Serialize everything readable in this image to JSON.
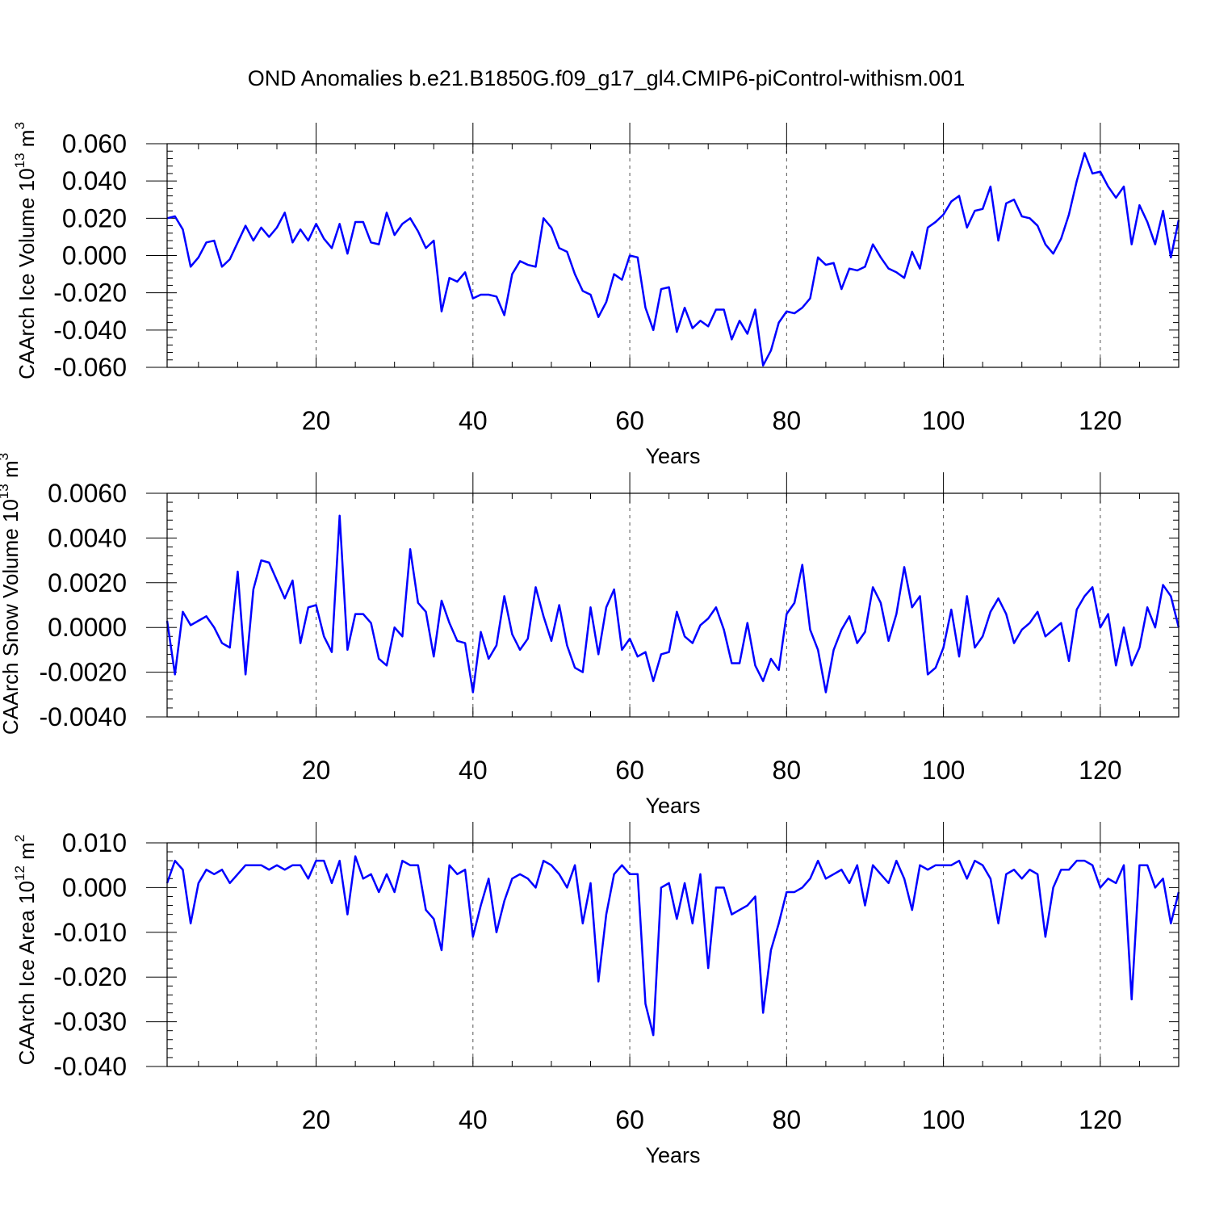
{
  "title": "OND Anomalies b.e21.B1850G.f09_g17_gl4.CMIP6-piControl-withism.001",
  "colors": {
    "series": "#0000ff",
    "frame": "#000000"
  },
  "chart_data": [
    {
      "type": "line",
      "ylabel": "CAArch Ice Volume 10",
      "ylabel_exp": "13",
      "ylabel_unit": " m",
      "ylabel_unit_exp": "3",
      "xlabel": "Years",
      "xlim": [
        1,
        130
      ],
      "ylim": [
        -0.06,
        0.06
      ],
      "yticks": [
        -0.06,
        -0.04,
        -0.02,
        0.0,
        0.02,
        0.04,
        0.06
      ],
      "ytick_labels": [
        "-0.060",
        "-0.040",
        "-0.020",
        "0.000",
        "0.020",
        "0.040",
        "0.060"
      ],
      "xticks": [
        20,
        40,
        60,
        80,
        100,
        120
      ],
      "xtick_labels": [
        "20",
        "40",
        "60",
        "80",
        "100",
        "120"
      ],
      "grid": "dashed vertical at major x ticks",
      "series": [
        {
          "values": [
            0.02,
            0.021,
            0.014,
            -0.006,
            -0.001,
            0.007,
            0.008,
            -0.006,
            -0.002,
            0.007,
            0.016,
            0.008,
            0.015,
            0.01,
            0.015,
            0.023,
            0.007,
            0.014,
            0.008,
            0.017,
            0.009,
            0.004,
            0.017,
            0.001,
            0.018,
            0.018,
            0.007,
            0.006,
            0.023,
            0.011,
            0.017,
            0.02,
            0.013,
            0.004,
            0.008,
            -0.03,
            -0.012,
            -0.014,
            -0.009,
            -0.023,
            -0.021,
            -0.021,
            -0.022,
            -0.032,
            -0.01,
            -0.003,
            -0.005,
            -0.006,
            0.02,
            0.015,
            0.004,
            0.002,
            -0.01,
            -0.019,
            -0.021,
            -0.033,
            -0.025,
            -0.01,
            -0.013,
            0.0,
            -0.001,
            -0.028,
            -0.04,
            -0.018,
            -0.017,
            -0.041,
            -0.028,
            -0.039,
            -0.035,
            -0.038,
            -0.029,
            -0.029,
            -0.045,
            -0.035,
            -0.042,
            -0.029,
            -0.059,
            -0.051,
            -0.036,
            -0.03,
            -0.031,
            -0.028,
            -0.023,
            -0.001,
            -0.005,
            -0.004,
            -0.018,
            -0.007,
            -0.008,
            -0.006,
            0.006,
            -0.001,
            -0.007,
            -0.009,
            -0.012,
            0.002,
            -0.007,
            0.015,
            0.018,
            0.022,
            0.029,
            0.032,
            0.015,
            0.024,
            0.025,
            0.037,
            0.008,
            0.028,
            0.03,
            0.021,
            0.02,
            0.016,
            0.006,
            0.001,
            0.009,
            0.022,
            0.04,
            0.055,
            0.044,
            0.045,
            0.037,
            0.031,
            0.037,
            0.006,
            0.027,
            0.018,
            0.006,
            0.024,
            -0.001,
            0.019
          ]
        }
      ]
    },
    {
      "type": "line",
      "ylabel": "CAArch Snow Volume 10",
      "ylabel_exp": "13",
      "ylabel_unit": " m",
      "ylabel_unit_exp": "3",
      "xlabel": "Years",
      "xlim": [
        1,
        130
      ],
      "ylim": [
        -0.004,
        0.006
      ],
      "yticks": [
        -0.004,
        -0.002,
        0.0,
        0.002,
        0.004,
        0.006
      ],
      "ytick_labels": [
        "-0.0040",
        "-0.0020",
        "0.0000",
        "0.0020",
        "0.0040",
        "0.0060"
      ],
      "xticks": [
        20,
        40,
        60,
        80,
        100,
        120
      ],
      "xtick_labels": [
        "20",
        "40",
        "60",
        "80",
        "100",
        "120"
      ],
      "grid": "dashed vertical at major x ticks",
      "series": [
        {
          "values": [
            0.0003,
            -0.0021,
            0.0007,
            0.0001,
            0.0003,
            0.0005,
            0.0,
            -0.0007,
            -0.0009,
            0.0025,
            -0.0021,
            0.0017,
            0.003,
            0.0029,
            0.0021,
            0.0013,
            0.0021,
            -0.0007,
            0.0009,
            0.001,
            -0.0004,
            -0.0011,
            0.005,
            -0.001,
            0.0006,
            0.0006,
            0.0002,
            -0.0014,
            -0.0017,
            0.0,
            -0.0004,
            0.0035,
            0.0011,
            0.0007,
            -0.0013,
            0.0012,
            0.0002,
            -0.0006,
            -0.0007,
            -0.0029,
            -0.0002,
            -0.0014,
            -0.0008,
            0.0014,
            -0.0003,
            -0.001,
            -0.0005,
            0.0018,
            0.0005,
            -0.0006,
            0.001,
            -0.0008,
            -0.0018,
            -0.002,
            0.0009,
            -0.0012,
            0.0009,
            0.0017,
            -0.001,
            -0.0005,
            -0.0013,
            -0.0011,
            -0.0024,
            -0.0012,
            -0.0011,
            0.0007,
            -0.0004,
            -0.0007,
            0.0001,
            0.0004,
            0.0009,
            -0.0001,
            -0.0016,
            -0.0016,
            0.0002,
            -0.0017,
            -0.0024,
            -0.0014,
            -0.0019,
            0.0006,
            0.0011,
            0.0028,
            -0.0001,
            -0.001,
            -0.0029,
            -0.001,
            -0.0001,
            0.0005,
            -0.0007,
            -0.0002,
            0.0018,
            0.0011,
            -0.0006,
            0.0006,
            0.0027,
            0.0009,
            0.0014,
            -0.0021,
            -0.0018,
            -0.0009,
            0.0008,
            -0.0013,
            0.0014,
            -0.0009,
            -0.0004,
            0.0007,
            0.0013,
            0.0006,
            -0.0007,
            -0.0001,
            0.0002,
            0.0007,
            -0.0004,
            -0.0001,
            0.0002,
            -0.0015,
            0.0008,
            0.0014,
            0.0018,
            0.0,
            0.0006,
            -0.0017,
            0.0,
            -0.0017,
            -0.0009,
            0.0009,
            0.0,
            0.0019,
            0.0014,
            0.0
          ]
        }
      ]
    },
    {
      "type": "line",
      "ylabel": "CAArch Ice Area 10",
      "ylabel_exp": "12",
      "ylabel_unit": " m",
      "ylabel_unit_exp": "2",
      "xlabel": "Years",
      "xlim": [
        1,
        130
      ],
      "ylim": [
        -0.04,
        0.01
      ],
      "yticks": [
        -0.04,
        -0.03,
        -0.02,
        -0.01,
        0.0,
        0.01
      ],
      "ytick_labels": [
        "-0.040",
        "-0.030",
        "-0.020",
        "-0.010",
        "0.000",
        "0.010"
      ],
      "xticks": [
        20,
        40,
        60,
        80,
        100,
        120
      ],
      "xtick_labels": [
        "20",
        "40",
        "60",
        "80",
        "100",
        "120"
      ],
      "grid": "dashed vertical at major x ticks",
      "series": [
        {
          "values": [
            0.001,
            0.006,
            0.004,
            -0.008,
            0.001,
            0.004,
            0.003,
            0.004,
            0.001,
            0.003,
            0.005,
            0.005,
            0.005,
            0.004,
            0.005,
            0.004,
            0.005,
            0.005,
            0.002,
            0.006,
            0.006,
            0.001,
            0.006,
            -0.006,
            0.007,
            0.002,
            0.003,
            -0.001,
            0.003,
            -0.001,
            0.006,
            0.005,
            0.005,
            -0.005,
            -0.007,
            -0.014,
            0.005,
            0.003,
            0.004,
            -0.011,
            -0.004,
            0.002,
            -0.01,
            -0.003,
            0.002,
            0.003,
            0.002,
            0.0,
            0.006,
            0.005,
            0.003,
            0.0,
            0.005,
            -0.008,
            0.001,
            -0.021,
            -0.006,
            0.003,
            0.005,
            0.003,
            0.003,
            -0.026,
            -0.033,
            0.0,
            0.001,
            -0.007,
            0.001,
            -0.008,
            0.003,
            -0.018,
            0.0,
            0.0,
            -0.006,
            -0.005,
            -0.004,
            -0.002,
            -0.028,
            -0.014,
            -0.008,
            -0.001,
            -0.001,
            0.0,
            0.002,
            0.006,
            0.002,
            0.003,
            0.004,
            0.001,
            0.005,
            -0.004,
            0.005,
            0.003,
            0.001,
            0.006,
            0.002,
            -0.005,
            0.005,
            0.004,
            0.005,
            0.005,
            0.005,
            0.006,
            0.002,
            0.006,
            0.005,
            0.002,
            -0.008,
            0.003,
            0.004,
            0.002,
            0.004,
            0.003,
            -0.011,
            0.0,
            0.004,
            0.004,
            0.006,
            0.006,
            0.005,
            0.0,
            0.002,
            0.001,
            0.005,
            -0.025,
            0.005,
            0.005,
            0.0,
            0.002,
            -0.008,
            -0.001
          ]
        }
      ]
    }
  ]
}
